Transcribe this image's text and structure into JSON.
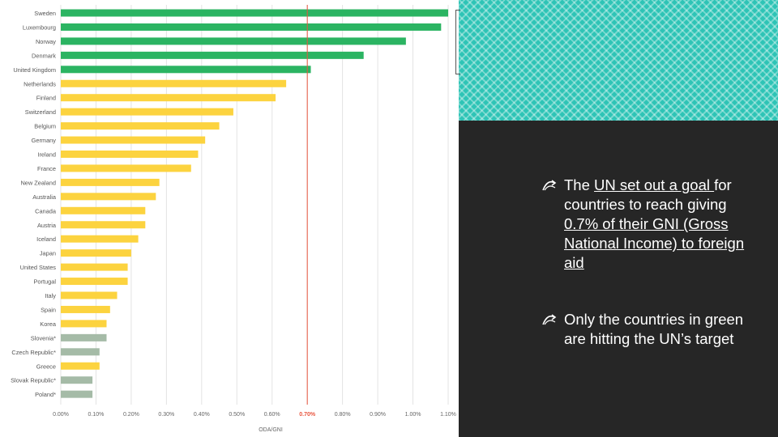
{
  "chart_data": {
    "type": "bar",
    "orientation": "horizontal",
    "categories": [
      "Sweden",
      "Luxembourg",
      "Norway",
      "Denmark",
      "United Kingdom",
      "Netherlands",
      "Finland",
      "Switzerland",
      "Belgium",
      "Germany",
      "Ireland",
      "France",
      "New Zealand",
      "Australia",
      "Canada",
      "Austria",
      "Iceland",
      "Japan",
      "United States",
      "Portugal",
      "Italy",
      "Spain",
      "Korea",
      "Slovenia*",
      "Czech Republic*",
      "Greece",
      "Slovak Republic*",
      "Poland*"
    ],
    "values": [
      1.1,
      1.08,
      0.98,
      0.86,
      0.71,
      0.64,
      0.61,
      0.49,
      0.45,
      0.41,
      0.39,
      0.37,
      0.28,
      0.27,
      0.24,
      0.24,
      0.22,
      0.2,
      0.19,
      0.19,
      0.16,
      0.14,
      0.13,
      0.13,
      0.11,
      0.11,
      0.09,
      0.09
    ],
    "groups": [
      "green",
      "green",
      "green",
      "green",
      "green",
      "yellow",
      "yellow",
      "yellow",
      "yellow",
      "yellow",
      "yellow",
      "yellow",
      "yellow",
      "yellow",
      "yellow",
      "yellow",
      "yellow",
      "yellow",
      "yellow",
      "yellow",
      "yellow",
      "yellow",
      "yellow",
      "gray",
      "gray",
      "yellow",
      "gray",
      "gray"
    ],
    "colors": {
      "green": "#2bb462",
      "yellow": "#fcd33f",
      "gray": "#a5bba7",
      "target_line": "#e8553e"
    },
    "xlabel": "ODA/GNI",
    "xlim": [
      0,
      1.1
    ],
    "xticks": [
      "0.00%",
      "0.10%",
      "0.20%",
      "0.30%",
      "0.40%",
      "0.50%",
      "0.60%",
      "0.70%",
      "0.80%",
      "0.90%",
      "1.00%",
      "1.10%"
    ],
    "target_value": 0.7,
    "target_tick_label": "0.70%",
    "grid": true
  },
  "bullets": [
    {
      "parts": [
        {
          "text": "The ",
          "u": false
        },
        {
          "text": "UN set out a goal ",
          "u": true
        },
        {
          "text": "for countries to reach giving ",
          "u": false
        },
        {
          "text": "0.7% of their GNI (Gross National Income) to foreign aid",
          "u": true
        }
      ]
    },
    {
      "parts": [
        {
          "text": "Only the countries in green are hitting the UN’s target",
          "u": false
        }
      ]
    }
  ]
}
